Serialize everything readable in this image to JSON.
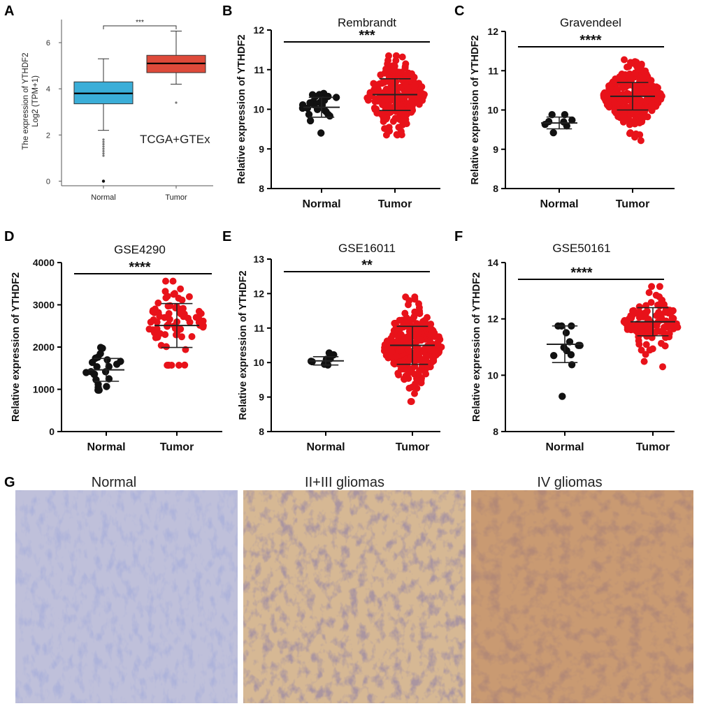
{
  "panels": {
    "A": "A",
    "B": "B",
    "C": "C",
    "D": "D",
    "E": "E",
    "F": "F",
    "G": "G"
  },
  "colors": {
    "normal_box": "#3aaed8",
    "tumor_box": "#de4a3a",
    "normal_dot": "#111111",
    "tumor_dot": "#e8121a",
    "axis": "#000000"
  },
  "chart_data": [
    {
      "id": "A",
      "type": "box",
      "title": "",
      "annotation": "TCGA+GTEx",
      "ylabel_line1": "The expression of YTHDF2",
      "ylabel_line2": "Log2 (TPM+1)",
      "categories": [
        "Normal",
        "Tumor"
      ],
      "ylim": [
        -0.2,
        7
      ],
      "yticks": [
        0,
        2,
        4,
        6
      ],
      "significance": "***",
      "boxes": [
        {
          "category": "Normal",
          "whisker_low": 2.2,
          "q1": 3.35,
          "median": 3.8,
          "q3": 4.3,
          "whisker_high": 5.3,
          "outliers": [
            1.8,
            1.7,
            1.6,
            1.5,
            1.4,
            1.3,
            1.2,
            1.1,
            0.0
          ]
        },
        {
          "category": "Tumor",
          "whisker_low": 4.2,
          "q1": 4.7,
          "median": 5.1,
          "q3": 5.45,
          "whisker_high": 6.5,
          "outliers": [
            3.4
          ]
        }
      ]
    },
    {
      "id": "B",
      "type": "scatter",
      "title": "Rembrandt",
      "ylabel": "Relative expression of YTHDF2",
      "categories": [
        "Normal",
        "Tumor"
      ],
      "ylim": [
        8,
        12
      ],
      "yticks": [
        8,
        9,
        10,
        11,
        12
      ],
      "significance": "***",
      "groups": [
        {
          "category": "Normal",
          "mean": 10.05,
          "sd": 0.25,
          "n": 25,
          "min": 9.4,
          "max": 10.4
        },
        {
          "category": "Tumor",
          "mean": 10.37,
          "sd": 0.4,
          "n": 230,
          "min": 9.35,
          "max": 11.35
        }
      ]
    },
    {
      "id": "C",
      "type": "scatter",
      "title": "Gravendeel",
      "ylabel": "Relative expression of YTHDF2",
      "categories": [
        "Normal",
        "Tumor"
      ],
      "ylim": [
        8,
        12
      ],
      "yticks": [
        8,
        9,
        10,
        11,
        12
      ],
      "significance": "****",
      "groups": [
        {
          "category": "Normal",
          "mean": 9.67,
          "sd": 0.15,
          "n": 8,
          "min": 9.42,
          "max": 9.88
        },
        {
          "category": "Tumor",
          "mean": 10.35,
          "sd": 0.35,
          "n": 270,
          "min": 9.22,
          "max": 11.28
        }
      ]
    },
    {
      "id": "D",
      "type": "scatter",
      "title": "GSE4290",
      "ylabel": "Relative expression of YTHDF2",
      "categories": [
        "Normal",
        "Tumor"
      ],
      "ylim": [
        0,
        4000
      ],
      "yticks": [
        0,
        1000,
        2000,
        3000,
        4000
      ],
      "significance": "****",
      "groups": [
        {
          "category": "Normal",
          "mean": 1460,
          "sd": 270,
          "n": 23,
          "min": 980,
          "max": 1990
        },
        {
          "category": "Tumor",
          "mean": 2510,
          "sd": 520,
          "n": 77,
          "min": 1570,
          "max": 3560
        }
      ]
    },
    {
      "id": "E",
      "type": "scatter",
      "title": "GSE16011",
      "ylabel": "Relative expression of YTHDF2",
      "categories": [
        "Normal",
        "Tumor"
      ],
      "ylim": [
        8,
        13
      ],
      "yticks": [
        8,
        9,
        10,
        11,
        12,
        13
      ],
      "significance": "**",
      "groups": [
        {
          "category": "Normal",
          "mean": 10.05,
          "sd": 0.12,
          "n": 8,
          "min": 9.93,
          "max": 10.28
        },
        {
          "category": "Tumor",
          "mean": 10.5,
          "sd": 0.55,
          "n": 276,
          "min": 8.87,
          "max": 11.9
        }
      ]
    },
    {
      "id": "F",
      "type": "scatter",
      "title": "GSE50161",
      "ylabel": "Relative expression of YTHDF2",
      "categories": [
        "Normal",
        "Tumor"
      ],
      "ylim": [
        8,
        14
      ],
      "yticks": [
        8,
        10,
        12,
        14
      ],
      "significance": "****",
      "groups": [
        {
          "category": "Normal",
          "mean": 11.1,
          "sd": 0.65,
          "n": 13,
          "min": 9.25,
          "max": 11.75
        },
        {
          "category": "Tumor",
          "mean": 11.9,
          "sd": 0.5,
          "n": 117,
          "min": 10.3,
          "max": 13.15
        }
      ]
    }
  ],
  "histology": [
    {
      "title": "Normal",
      "stain": "weak"
    },
    {
      "title": "II+III gliomas",
      "stain": "moderate"
    },
    {
      "title": "IV gliomas",
      "stain": "strong"
    }
  ]
}
